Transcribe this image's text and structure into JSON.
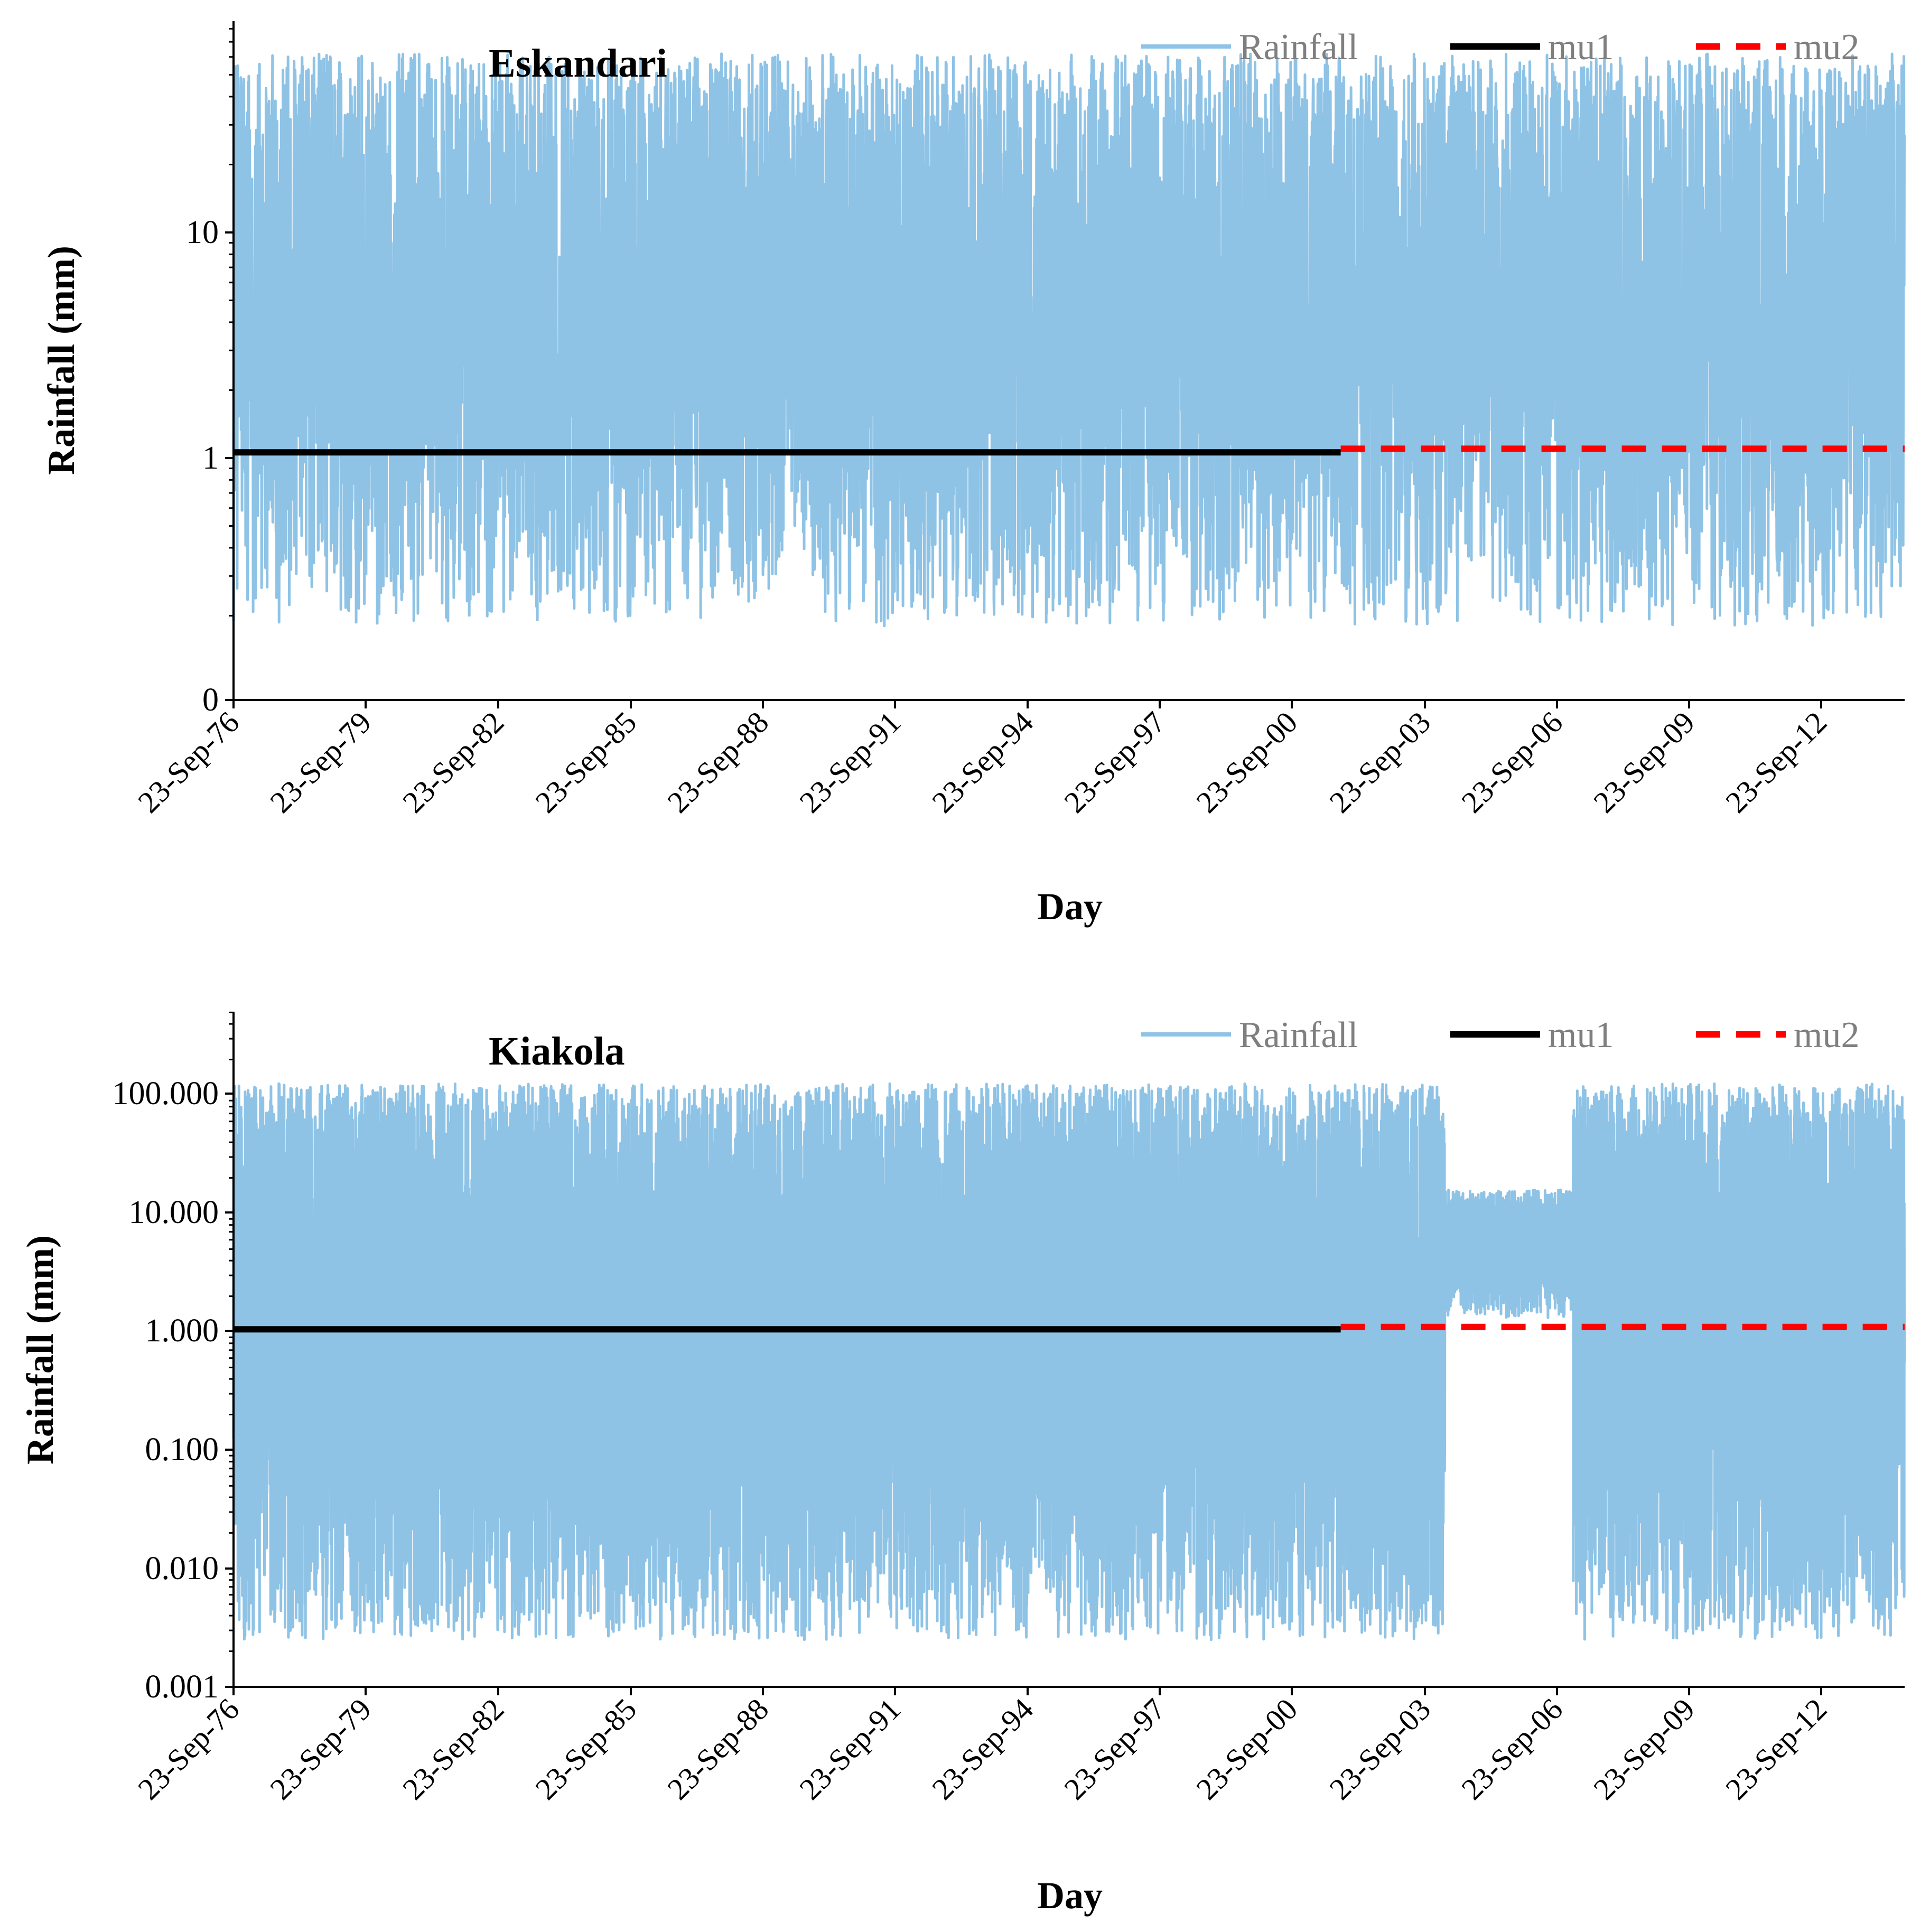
{
  "chart_data": [
    {
      "type": "line",
      "title": "Eskandari",
      "xlabel": "Day",
      "ylabel": "Rainfall (mm)",
      "y_scale": "log",
      "y_ticks": [
        "0",
        "1",
        "10"
      ],
      "x_ticks": [
        "23-Sep-76",
        "23-Sep-79",
        "23-Sep-82",
        "23-Sep-85",
        "23-Sep-88",
        "23-Sep-91",
        "23-Sep-94",
        "23-Sep-97",
        "23-Sep-00",
        "23-Sep-03",
        "23-Sep-06",
        "23-Sep-09",
        "23-Sep-12"
      ],
      "x_range": [
        "1976-09-23",
        "2014-06-30"
      ],
      "grid": false,
      "legend_position": "top-right",
      "series": [
        {
          "name": "Rainfall",
          "color": "#8ec3e6",
          "style": "solid",
          "note_range_mm": [
            0.18,
            62
          ]
        },
        {
          "name": "mu1",
          "color": "#000000",
          "style": "solid",
          "value": 1.06,
          "x_start": "1976-09-23",
          "x_end": "2001-10-01"
        },
        {
          "name": "mu2",
          "color": "#ff0000",
          "style": "dashed",
          "value": 1.1,
          "x_start": "2001-10-01",
          "x_end": "2014-06-30"
        }
      ]
    },
    {
      "type": "line",
      "title": "Kiakola",
      "xlabel": "Day",
      "ylabel": "Rainfall (mm)",
      "y_scale": "log",
      "y_ticks": [
        "0.001",
        "0.010",
        "0.100",
        "1.000",
        "10.000",
        "100.000"
      ],
      "x_ticks": [
        "23-Sep-76",
        "23-Sep-79",
        "23-Sep-82",
        "23-Sep-85",
        "23-Sep-88",
        "23-Sep-91",
        "23-Sep-94",
        "23-Sep-97",
        "23-Sep-00",
        "23-Sep-03",
        "23-Sep-06",
        "23-Sep-09",
        "23-Sep-12"
      ],
      "x_range": [
        "1976-09-23",
        "2014-06-30"
      ],
      "grid": false,
      "legend_position": "top-right",
      "series": [
        {
          "name": "Rainfall",
          "color": "#8ec3e6",
          "style": "solid",
          "note_range_mm": [
            0.0025,
            125
          ]
        },
        {
          "name": "mu1",
          "color": "#000000",
          "style": "solid",
          "value": 1.05,
          "x_start": "1976-09-23",
          "x_end": "2001-10-01"
        },
        {
          "name": "mu2",
          "color": "#ff0000",
          "style": "dashed",
          "value": 1.1,
          "x_start": "2001-10-01",
          "x_end": "2014-06-30"
        }
      ]
    }
  ]
}
